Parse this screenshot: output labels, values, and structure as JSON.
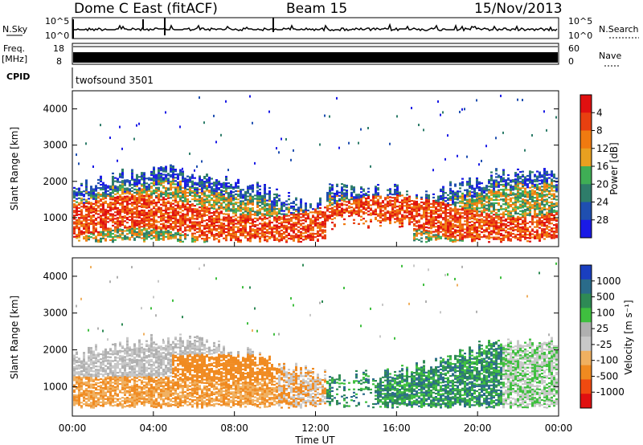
{
  "header": {
    "station": "Dome C East (fitACF)",
    "beam": "Beam 15",
    "date": "15/Nov/2013"
  },
  "strip_labels": {
    "nsky": "N.Sky",
    "nsky_top": "10^5",
    "nsky_bottom": "10^0",
    "nsearch": "N.Search",
    "nsearch_top": "10^5",
    "nsearch_bottom": "10^0",
    "freq": "Freq.",
    "freq_unit": "[MHz]",
    "freq_top": "18",
    "freq_bottom": "8",
    "nave": "Nave",
    "nave_top": "60",
    "nave_bottom": "0",
    "cpid": "CPID",
    "cpid_value": "twofsound 3501"
  },
  "colors": {
    "power": [
      "#1a1ae6",
      "#1f4fb0",
      "#2e7d6a",
      "#3fae55",
      "#e8a020",
      "#f07a10",
      "#e84010",
      "#e01010"
    ],
    "velocity": [
      "#e01010",
      "#f04a10",
      "#f08a20",
      "#f0b060",
      "#c8c8c8",
      "#b0b0b0",
      "#3fbf3f",
      "#2e8a55",
      "#2a6b8a",
      "#1a3fc0"
    ]
  },
  "chart_data": [
    {
      "type": "heatmap",
      "title": "Power",
      "ylabel": "Slant Range [km]",
      "xlabel": "Time UT",
      "x_ticks": [
        "00:00",
        "04:00",
        "08:00",
        "12:00",
        "16:00",
        "20:00",
        "00:00"
      ],
      "y_ticks": [
        "1000",
        "2000",
        "3000",
        "4000"
      ],
      "ylim": [
        200,
        4500
      ],
      "colorbar_label": "Power [dB]",
      "colorbar_ticks": [
        "4",
        "8",
        "12",
        "16",
        "20",
        "24",
        "28"
      ]
    },
    {
      "type": "heatmap",
      "title": "Velocity",
      "ylabel": "Slant Range [km]",
      "xlabel": "Time UT",
      "x_ticks": [
        "00:00",
        "04:00",
        "08:00",
        "12:00",
        "16:00",
        "20:00",
        "00:00"
      ],
      "y_ticks": [
        "1000",
        "2000",
        "3000",
        "4000"
      ],
      "ylim": [
        200,
        4500
      ],
      "colorbar_label": "Velocity [m s⁻¹]",
      "colorbar_ticks": [
        "1000",
        "500",
        "100",
        "25",
        "-25",
        "-100",
        "-500",
        "-1000"
      ]
    }
  ],
  "axis_title": "Time UT"
}
